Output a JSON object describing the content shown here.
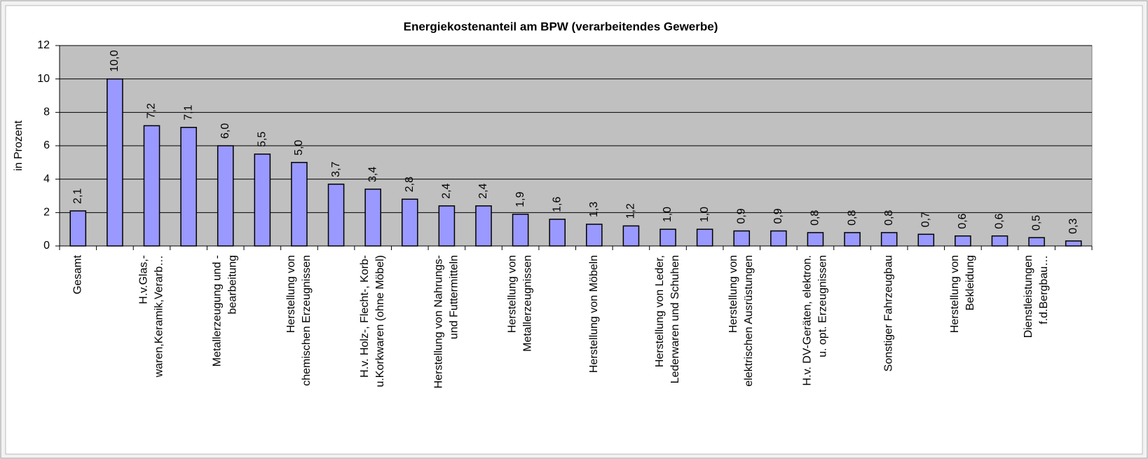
{
  "chart_data": {
    "type": "bar",
    "title": "Energiekostenanteil am BPW (verarbeitendes Gewerbe)",
    "y_label": "in Prozent",
    "categories": [
      "Gesamt",
      null,
      "H.v.Glas,-\nwaren,Keramik,Verarb…",
      null,
      "Metallerzeugung und -\nbearbeitung",
      null,
      "Herstellung von\nchemischen Erzeugnissen",
      null,
      "H.v. Holz-, Flecht-, Korb-\nu.Korkwaren (ohne Möbel)",
      null,
      "Herstellung von Nahrungs-\nund Futtermitteln",
      null,
      "Herstellung von\nMetallerzeugnissen",
      null,
      "Herstellung von Möbeln",
      null,
      "Herstellung von Leder,\nLederwaren und Schuhen",
      null,
      "Herstellung von\nelektrischen Ausrüstungen",
      null,
      "H.v. DV-Geräten, elektron.\nu. opt. Erzeugnissen",
      null,
      "Sonstiger Fahrzeugbau",
      null,
      "Herstellung von\nBekleidung",
      null,
      "Dienstleistungen\nf.d.Bergbau…",
      null
    ],
    "values": [
      2.1,
      10.0,
      7.2,
      7.1,
      6.0,
      5.5,
      5.0,
      3.7,
      3.4,
      2.8,
      2.4,
      2.4,
      1.9,
      1.6,
      1.3,
      1.2,
      1.0,
      1.0,
      0.9,
      0.9,
      0.8,
      0.8,
      0.8,
      0.7,
      0.6,
      0.6,
      0.5,
      0.3
    ],
    "value_labels": [
      "2,1",
      "10,0",
      "7,2",
      "7,1",
      "6,0",
      "5,5",
      "5,0",
      "3,7",
      "3,4",
      "2,8",
      "2,4",
      "2,4",
      "1,9",
      "1,6",
      "1,3",
      "1,2",
      "1,0",
      "1,0",
      "0,9",
      "0,9",
      "0,8",
      "0,8",
      "0,8",
      "0,7",
      "0,6",
      "0,6",
      "0,5",
      "0,3"
    ],
    "color": "#9999ff",
    "ylim": [
      0,
      12
    ],
    "yticks": [
      0,
      2,
      4,
      6,
      8,
      10,
      12
    ],
    "grid": true
  }
}
